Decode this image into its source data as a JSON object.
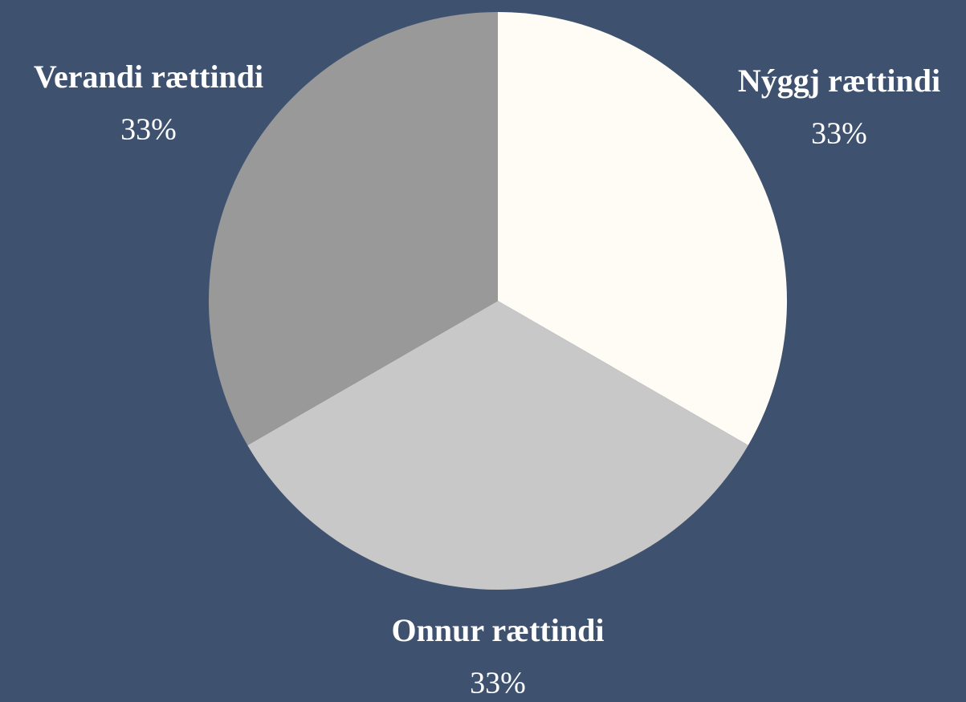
{
  "chart_data": {
    "type": "pie",
    "categories": [
      "Nýggj rættindi",
      "Onnur rættindi",
      "Verandi rættindi"
    ],
    "values": [
      33,
      33,
      33
    ],
    "value_labels": [
      "33%",
      "33%",
      "33%"
    ],
    "colors": [
      "#fffcf5",
      "#c8c8c8",
      "#999999"
    ],
    "background": "#3e5270"
  }
}
